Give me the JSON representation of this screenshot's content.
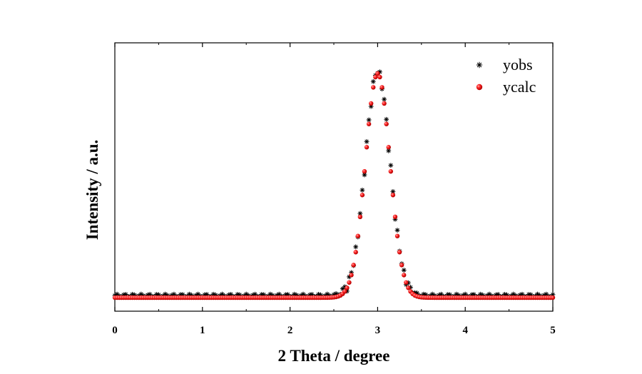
{
  "chart_data": {
    "type": "scatter",
    "title": "",
    "xlabel": "2 Theta / degree",
    "ylabel": "Intensity / a.u.",
    "xlim": [
      0,
      5
    ],
    "ylim": [
      0,
      1.2
    ],
    "x_ticks": [
      "0",
      "1",
      "2",
      "3",
      "4",
      "5"
    ],
    "y_ticks_shown": false,
    "grid": false,
    "legend_position": "top-right",
    "peak": {
      "center": 3.0,
      "height": 1.0,
      "sigma": 0.14,
      "baseline": 0.01
    },
    "series": [
      {
        "name": "yobs",
        "marker": "asterisk",
        "color": "#000000",
        "x_range": [
          0,
          5
        ],
        "x_step": 0.025
      },
      {
        "name": "ycalc",
        "marker": "sphere",
        "color": "#ff0000",
        "x_range": [
          0,
          5
        ],
        "x_step": 0.025
      }
    ]
  }
}
